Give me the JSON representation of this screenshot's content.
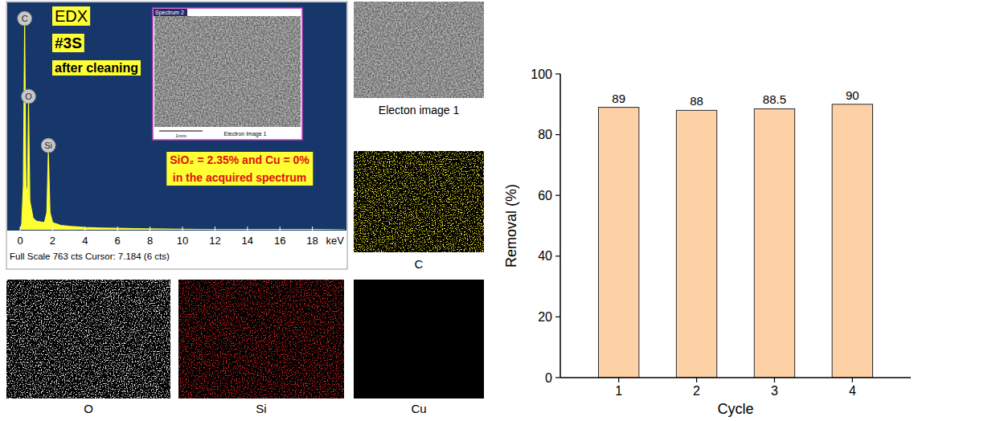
{
  "chart_data": [
    {
      "type": "area",
      "x": [
        0,
        0.1,
        0.2,
        0.28,
        0.36,
        0.45,
        0.52,
        0.6,
        0.8,
        1.0,
        1.5,
        1.65,
        1.74,
        1.84,
        2.0,
        2.5,
        3,
        4,
        5,
        6,
        7,
        8,
        10,
        12,
        14,
        16,
        18,
        20
      ],
      "values": [
        0,
        20,
        150,
        710,
        150,
        120,
        440,
        100,
        40,
        30,
        25,
        60,
        270,
        60,
        25,
        15,
        12,
        8,
        6,
        5,
        4,
        3,
        2,
        1,
        1,
        1,
        1,
        0
      ],
      "color": "#ffff33",
      "xlim": [
        0,
        20
      ],
      "xticks": [
        0,
        2,
        4,
        6,
        8,
        10,
        12,
        14,
        16,
        18
      ],
      "ylim": [
        0,
        763
      ],
      "tick_labels": "x",
      "x_label": "keV",
      "footer": "Full Scale 763 cts Cursor: 7.184 (6 cts)",
      "annotations": [
        {
          "text": "C",
          "x": 0.28,
          "y": 710
        },
        {
          "text": "O",
          "x": 0.52,
          "y": 440
        },
        {
          "text": "Si",
          "x": 1.74,
          "y": 270
        }
      ]
    },
    {
      "type": "bar",
      "categories": [
        "1",
        "2",
        "3",
        "4"
      ],
      "values": [
        89,
        88,
        88.5,
        90
      ],
      "color": "#fdd0a5",
      "ylim": [
        0,
        100
      ],
      "yticks": [
        0,
        20,
        40,
        60,
        80,
        100
      ],
      "x_label": "Cycle",
      "y_label": "Removal (%)",
      "data_labels": true
    }
  ],
  "edx_panel": {
    "badges": [
      "EDX",
      "#3S",
      "after cleaning"
    ],
    "note": [
      "SiO₂ = 2.35% and Cu = 0%",
      "in the acquired spectrum"
    ],
    "inset": {
      "title": "Spectrum 2",
      "scale": "1mm",
      "caption": "Electron Image 1"
    }
  },
  "maps": [
    {
      "label": "Electon image 1",
      "color": "#8c8c8c"
    },
    {
      "label": "C",
      "color": "#e6dc1e"
    },
    {
      "label": "O",
      "color": "#e0e0e0"
    },
    {
      "label": "Si",
      "color": "#cc2020"
    },
    {
      "label": "Cu",
      "color": "#000000"
    }
  ]
}
